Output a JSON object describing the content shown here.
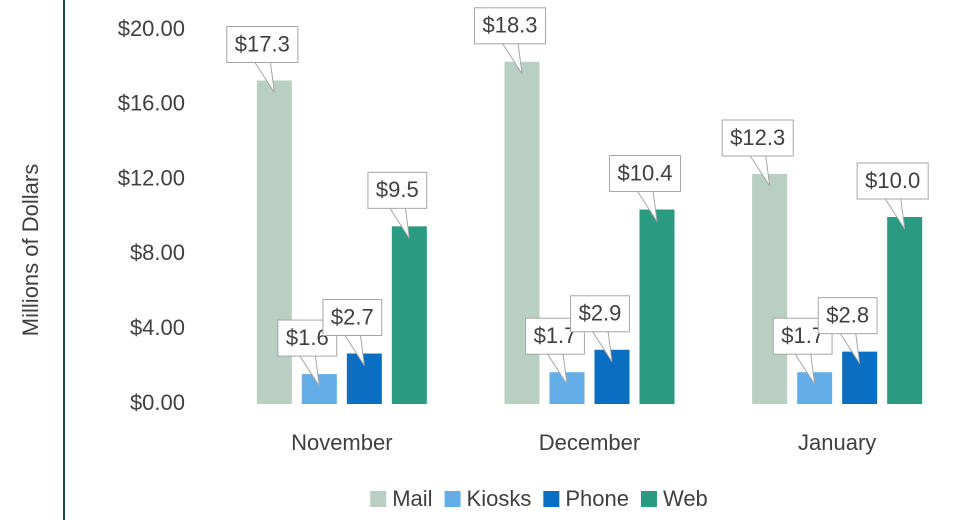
{
  "chart_data": {
    "type": "bar",
    "y_axis_label": "Millions of Dollars",
    "categories": [
      "November",
      "December",
      "January"
    ],
    "series": [
      {
        "name": "Mail",
        "color": "#b9cfc4",
        "values": [
          17.3,
          18.3,
          12.3
        ],
        "value_labels": [
          "$17.3",
          "$18.3",
          "$12.3"
        ]
      },
      {
        "name": "Kiosks",
        "color": "#63aee8",
        "values": [
          1.6,
          1.7,
          1.7
        ],
        "value_labels": [
          "$1.6",
          "$1.7",
          "$1.7"
        ]
      },
      {
        "name": "Phone",
        "color": "#0a6fc2",
        "values": [
          2.7,
          2.9,
          2.8
        ],
        "value_labels": [
          "$2.7",
          "$2.9",
          "$2.8"
        ]
      },
      {
        "name": "Web",
        "color": "#2a9a80",
        "values": [
          9.5,
          10.4,
          10.0
        ],
        "value_labels": [
          "$9.5",
          "$10.4",
          "$10.0"
        ]
      }
    ],
    "ylim": [
      0,
      20
    ],
    "yticks": [
      {
        "value": 0,
        "label": "$0.00"
      },
      {
        "value": 4,
        "label": "$4.00"
      },
      {
        "value": 8,
        "label": "$8.00"
      },
      {
        "value": 12,
        "label": "$12.00"
      },
      {
        "value": 16,
        "label": "$16.00"
      },
      {
        "value": 20,
        "label": "$20.00"
      }
    ],
    "legend": "bottom"
  }
}
